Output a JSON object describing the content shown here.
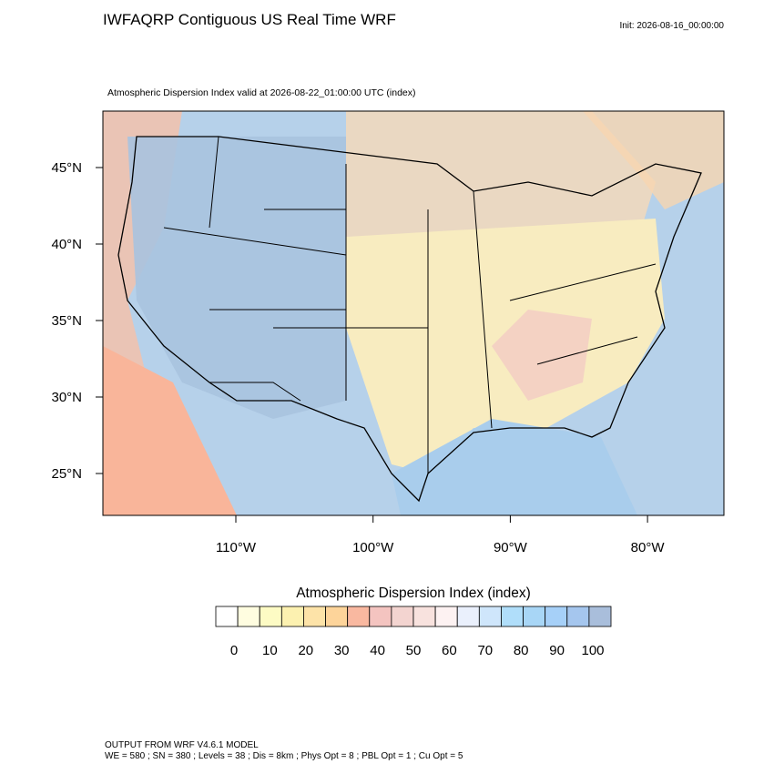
{
  "header": {
    "title": "IWFAQRP Contiguous US Real Time WRF",
    "init": "Init: 2026-08-16_00:00:00",
    "subtitle": "Atmospheric Dispersion Index valid at 2026-08-22_01:00:00 UTC   (index)"
  },
  "map": {
    "lat_labels": [
      "45°N",
      "40°N",
      "35°N",
      "30°N",
      "25°N"
    ],
    "lon_labels": [
      "110°W",
      "100°W",
      "90°W",
      "80°W"
    ]
  },
  "colorbar": {
    "title": "Atmospheric Dispersion Index  (index)",
    "labels": [
      "0",
      "10",
      "20",
      "30",
      "40",
      "50",
      "60",
      "70",
      "80",
      "90",
      "100"
    ],
    "colors": [
      "#ffffff",
      "#fffde0",
      "#fdfbc4",
      "#fcf1b0",
      "#fde3a8",
      "#fdd49a",
      "#f9b8a0",
      "#f4c4c0",
      "#f3d4d0",
      "#f8e2de",
      "#fdf2f2",
      "#eaf0fc",
      "#cfe6fb",
      "#b0defa",
      "#a8d6f6",
      "#a6d0f8",
      "#a5c6ee",
      "#a9bedb"
    ]
  },
  "footer": {
    "line1": "OUTPUT FROM WRF V4.6.1 MODEL",
    "line2": "WE = 580 ; SN = 380 ; Levels = 38 ; Dis = 8km ; Phys Opt = 8 ; PBL Opt = 1 ; Cu Opt = 5"
  }
}
